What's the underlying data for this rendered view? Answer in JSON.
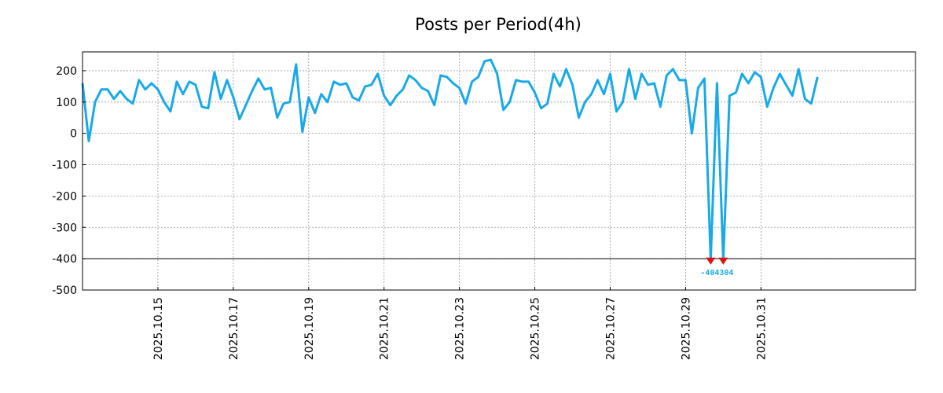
{
  "chart_data": {
    "type": "line",
    "title": "Posts per Period(4h)",
    "xlabel": "",
    "ylabel": "",
    "ylim": [
      -500,
      260
    ],
    "yticks": [
      200,
      100,
      0,
      -100,
      -200,
      -300,
      -400,
      -500
    ],
    "xlim_days": [
      0.0,
      22.1
    ],
    "xticks": [
      {
        "label": "2025.10.15",
        "day": 2.0
      },
      {
        "label": "2025.10.17",
        "day": 4.0
      },
      {
        "label": "2025.10.19",
        "day": 6.0
      },
      {
        "label": "2025.10.21",
        "day": 8.0
      },
      {
        "label": "2025.10.23",
        "day": 10.0
      },
      {
        "label": "2025.10.25",
        "day": 12.0
      },
      {
        "label": "2025.10.27",
        "day": 14.0
      },
      {
        "label": "2025.10.29",
        "day": 16.0
      },
      {
        "label": "2025.10.31",
        "day": 18.0
      }
    ],
    "grid": true,
    "reference_line": -400,
    "line_color": "#18a9e9",
    "marker_color": "#dd1111",
    "min_label_text": "-404304",
    "series": [
      {
        "values": [
          160,
          -25,
          100,
          140,
          140,
          110,
          135,
          110,
          95,
          170,
          140,
          160,
          140,
          100,
          70,
          165,
          125,
          165,
          155,
          85,
          80,
          195,
          110,
          170,
          115,
          45,
          90,
          135,
          175,
          140,
          145,
          50,
          95,
          100,
          220,
          5,
          115,
          65,
          125,
          100,
          165,
          155,
          160,
          115,
          105,
          150,
          155,
          190,
          120,
          90,
          120,
          140,
          185,
          170,
          145,
          135,
          90,
          185,
          180,
          160,
          145,
          95,
          165,
          180,
          230,
          235,
          190,
          75,
          100,
          170,
          165,
          165,
          130,
          80,
          95,
          190,
          150,
          205,
          155,
          50,
          100,
          125,
          170,
          125,
          190,
          70,
          100,
          205,
          110,
          190,
          155,
          160,
          85,
          185,
          205,
          170,
          170,
          0,
          145,
          175,
          -404,
          160,
          -404,
          120,
          130,
          190,
          160,
          195,
          180,
          85,
          145,
          190,
          155,
          120,
          205,
          110,
          95,
          180
        ]
      }
    ],
    "minima": [
      {
        "index": 100,
        "value": -404
      },
      {
        "index": 102,
        "value": -404
      }
    ]
  }
}
